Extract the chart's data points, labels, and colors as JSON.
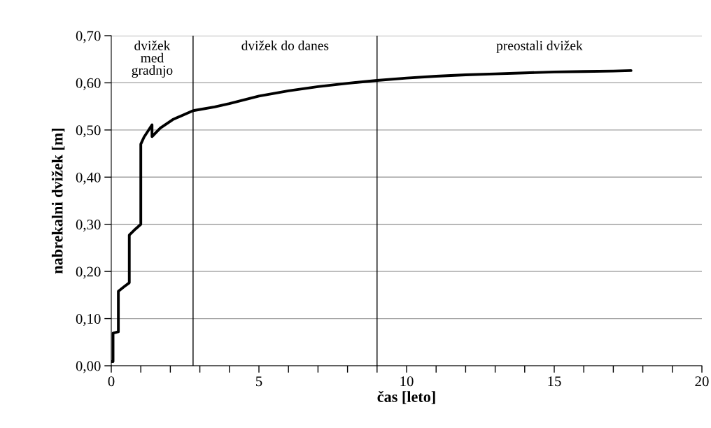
{
  "chart_data": {
    "type": "line",
    "xlabel": "čas [leto]",
    "ylabel": "nabrekalni dvižek [m]",
    "series": [
      {
        "color": "#000000",
        "x": [
          0,
          0.06,
          0.06,
          0.24,
          0.24,
          0.44,
          0.61,
          0.61,
          0.82,
          1.0,
          1.0,
          1.0,
          1.11,
          1.38,
          1.38,
          1.66,
          2.08,
          2.77,
          3.5,
          4,
          5,
          6,
          7,
          8,
          9,
          10,
          11,
          12,
          13,
          14,
          15,
          16,
          17,
          17.6
        ],
        "values": [
          0.009,
          0.009,
          0.069,
          0.072,
          0.158,
          0.168,
          0.176,
          0.277,
          0.29,
          0.3,
          0.31,
          0.47,
          0.485,
          0.511,
          0.486,
          0.504,
          0.522,
          0.541,
          0.549,
          0.556,
          0.572,
          0.583,
          0.592,
          0.599,
          0.605,
          0.61,
          0.614,
          0.617,
          0.619,
          0.621,
          0.623,
          0.624,
          0.625,
          0.626
        ]
      }
    ],
    "xlim": [
      0,
      20
    ],
    "xticks": [
      0,
      {
        "value": 1,
        "label": null
      },
      {
        "value": 2,
        "label": null
      },
      {
        "value": 3,
        "label": null
      },
      {
        "value": 4,
        "label": null
      },
      5,
      {
        "value": 6,
        "label": null
      },
      {
        "value": 7,
        "label": null
      },
      {
        "value": 8,
        "label": null
      },
      {
        "value": 9,
        "label": null
      },
      10,
      {
        "value": 11,
        "label": null
      },
      {
        "value": 12,
        "label": null
      },
      {
        "value": 13,
        "label": null
      },
      {
        "value": 14,
        "label": null
      },
      15,
      {
        "value": 16,
        "label": null
      },
      {
        "value": 17,
        "label": null
      },
      {
        "value": 18,
        "label": null
      },
      {
        "value": 19,
        "label": null
      },
      20
    ],
    "ylim": [
      0,
      0.7
    ],
    "yticks": [
      {
        "value": 0,
        "label": "0,00"
      },
      {
        "value": 0.1,
        "label": "0,10"
      },
      {
        "value": 0.2,
        "label": "0,20"
      },
      {
        "value": 0.3,
        "label": "0,30"
      },
      {
        "value": 0.4,
        "label": "0,40"
      },
      {
        "value": 0.5,
        "label": "0,50"
      },
      {
        "value": 0.6,
        "label": "0,60"
      },
      {
        "value": 0.7,
        "label": "0,70"
      }
    ],
    "grid": "y",
    "line_style": "solid",
    "marker": "none",
    "ref_lines": [
      {
        "axis": "x",
        "value": 2.77,
        "color": "#000000"
      },
      {
        "axis": "x",
        "value": 9.0,
        "color": "#000000"
      }
    ],
    "annotations": [
      "dvižek\nmed\ngradnjo",
      "dvižek do danes",
      "preostali dvižek"
    ]
  }
}
